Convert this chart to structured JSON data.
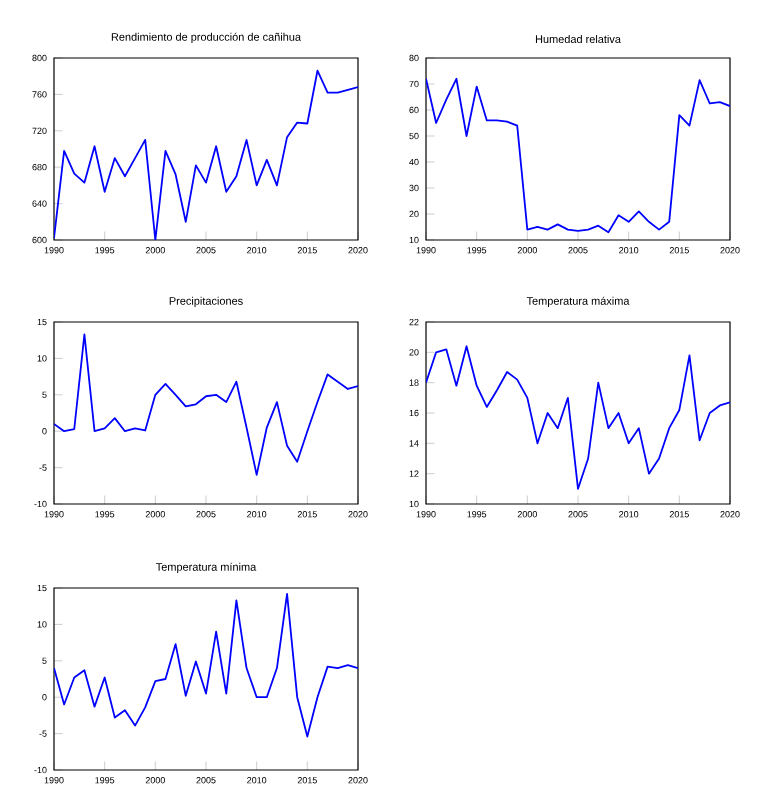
{
  "chart_data": [
    {
      "type": "line",
      "title": "Rendimiento de producción de cañihua",
      "color": "#0000ff",
      "xlim": [
        1990,
        2020
      ],
      "xticks": [
        1990,
        1995,
        2000,
        2005,
        2010,
        2015,
        2020
      ],
      "ylim": [
        600,
        800
      ],
      "yticks": [
        600,
        640,
        680,
        720,
        760,
        800
      ],
      "grid": false,
      "x": [
        1990,
        1991,
        1992,
        1993,
        1994,
        1995,
        1996,
        1997,
        1998,
        1999,
        2000,
        2001,
        2002,
        2003,
        2004,
        2005,
        2006,
        2007,
        2008,
        2009,
        2010,
        2011,
        2012,
        2013,
        2014,
        2015,
        2016,
        2017,
        2018,
        2019,
        2020
      ],
      "values": [
        602,
        698,
        673,
        663,
        703,
        653,
        690,
        670,
        690,
        710,
        600,
        698,
        672,
        620,
        682,
        663,
        703,
        653,
        670,
        710,
        660,
        688,
        660,
        713,
        729,
        728,
        786,
        762,
        762,
        765,
        768
      ]
    },
    {
      "type": "line",
      "title": "Humedad relativa",
      "color": "#0000ff",
      "xlim": [
        1990,
        2020
      ],
      "xticks": [
        1990,
        1995,
        2000,
        2005,
        2010,
        2015,
        2020
      ],
      "ylim": [
        10,
        80
      ],
      "yticks": [
        10,
        20,
        30,
        40,
        50,
        60,
        70,
        80
      ],
      "grid": false,
      "x": [
        1990,
        1991,
        1992,
        1993,
        1994,
        1995,
        1996,
        1997,
        1998,
        1999,
        2000,
        2001,
        2002,
        2003,
        2004,
        2005,
        2006,
        2007,
        2008,
        2009,
        2010,
        2011,
        2012,
        2013,
        2014,
        2015,
        2016,
        2017,
        2018,
        2019,
        2020
      ],
      "values": [
        72,
        55,
        64,
        72,
        50,
        69,
        56,
        56,
        55.5,
        54,
        14,
        15,
        14,
        16,
        14,
        13.5,
        14,
        15.5,
        13,
        19.5,
        17,
        21,
        17,
        14,
        17,
        58,
        54,
        71.5,
        62.5,
        63,
        61.5
      ]
    },
    {
      "type": "line",
      "title": "Precipitaciones",
      "color": "#0000ff",
      "xlim": [
        1990,
        2020
      ],
      "xticks": [
        1990,
        1995,
        2000,
        2005,
        2010,
        2015,
        2020
      ],
      "ylim": [
        -10,
        15
      ],
      "yticks": [
        -10,
        -5,
        0,
        5,
        10,
        15
      ],
      "grid": false,
      "x": [
        1990,
        1991,
        1992,
        1993,
        1994,
        1995,
        1996,
        1997,
        1998,
        1999,
        2000,
        2001,
        2002,
        2003,
        2004,
        2005,
        2006,
        2007,
        2008,
        2009,
        2010,
        2011,
        2012,
        2013,
        2014,
        2015,
        2016,
        2017,
        2018,
        2019,
        2020
      ],
      "values": [
        1,
        0,
        0.3,
        13.3,
        0,
        0.4,
        1.8,
        0,
        0.4,
        0.1,
        5,
        6.5,
        5,
        3.4,
        3.7,
        4.8,
        5,
        4,
        6.8,
        0.5,
        -6,
        0.5,
        4,
        -2,
        -4.2,
        0,
        4,
        7.8,
        6.8,
        5.8,
        6.2
      ]
    },
    {
      "type": "line",
      "title": "Temperatura máxima",
      "color": "#0000ff",
      "xlim": [
        1990,
        2020
      ],
      "xticks": [
        1990,
        1995,
        2000,
        2005,
        2010,
        2015,
        2020
      ],
      "ylim": [
        10,
        22
      ],
      "yticks": [
        10,
        12,
        14,
        16,
        18,
        20,
        22
      ],
      "grid": false,
      "x": [
        1990,
        1991,
        1992,
        1993,
        1994,
        1995,
        1996,
        1997,
        1998,
        1999,
        2000,
        2001,
        2002,
        2003,
        2004,
        2005,
        2006,
        2007,
        2008,
        2009,
        2010,
        2011,
        2012,
        2013,
        2014,
        2015,
        2016,
        2017,
        2018,
        2019,
        2020
      ],
      "values": [
        18,
        20,
        20.2,
        17.8,
        20.4,
        17.8,
        16.4,
        17.5,
        18.7,
        18.2,
        17,
        14,
        16,
        15,
        17,
        11,
        13,
        18,
        15,
        16,
        14,
        15,
        12,
        13,
        15,
        16.2,
        19.8,
        14.2,
        16,
        16.5,
        16.7
      ]
    },
    {
      "type": "line",
      "title": "Temperatura mínima",
      "color": "#0000ff",
      "xlim": [
        1990,
        2020
      ],
      "xticks": [
        1990,
        1995,
        2000,
        2005,
        2010,
        2015,
        2020
      ],
      "ylim": [
        -10,
        15
      ],
      "yticks": [
        -10,
        -5,
        0,
        5,
        10,
        15
      ],
      "grid": false,
      "x": [
        1990,
        1991,
        1992,
        1993,
        1994,
        1995,
        1996,
        1997,
        1998,
        1999,
        2000,
        2001,
        2002,
        2003,
        2004,
        2005,
        2006,
        2007,
        2008,
        2009,
        2010,
        2011,
        2012,
        2013,
        2014,
        2015,
        2016,
        2017,
        2018,
        2019,
        2020
      ],
      "values": [
        4,
        -1,
        2.7,
        3.7,
        -1.3,
        2.7,
        -2.8,
        -1.8,
        -3.9,
        -1.4,
        2.2,
        2.5,
        7.3,
        0.2,
        4.9,
        0.5,
        9,
        0.5,
        13.3,
        4,
        0,
        0,
        4,
        14.2,
        0,
        -5.4,
        0,
        4.2,
        4,
        4.4,
        4
      ]
    }
  ]
}
